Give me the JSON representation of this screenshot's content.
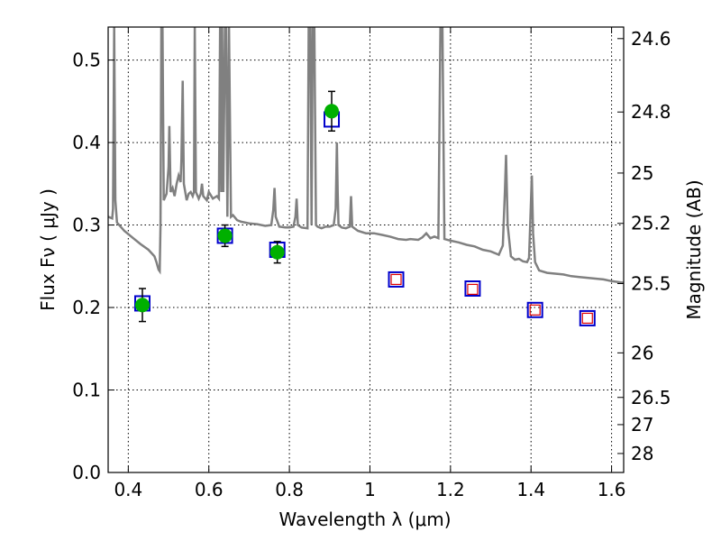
{
  "chart_data": {
    "type": "scatter",
    "xlabel": "Wavelength  λ (μm)",
    "ylabel": "Flux  Fν  ( μJy )",
    "ylabel_right": "Magnitude (AB)",
    "xlim": [
      0.35,
      1.63
    ],
    "ylim": [
      0.0,
      0.54
    ],
    "grid": true,
    "x_ticks": [
      0.4,
      0.6,
      0.8,
      1.0,
      1.2,
      1.4,
      1.6
    ],
    "x_tick_labels": [
      "0.4",
      "0.6",
      "0.8",
      "1",
      "1.2",
      "1.4",
      "1.6"
    ],
    "y_ticks": [
      0.0,
      0.1,
      0.2,
      0.3,
      0.4,
      0.5
    ],
    "y_tick_labels": [
      "0.0",
      "0.1",
      "0.2",
      "0.3",
      "0.4",
      "0.5"
    ],
    "right_ticks": [
      {
        "label": "24.6",
        "flux": 0.526
      },
      {
        "label": "24.8",
        "flux": 0.437
      },
      {
        "label": "25",
        "flux": 0.363
      },
      {
        "label": "25.2",
        "flux": 0.302
      },
      {
        "label": "25.5",
        "flux": 0.229
      },
      {
        "label": "26",
        "flux": 0.145
      },
      {
        "label": "26.5",
        "flux": 0.091
      },
      {
        "label": "27",
        "flux": 0.058
      },
      {
        "label": "28",
        "flux": 0.023
      }
    ],
    "colors": {
      "model": "#808080",
      "observed": "#00b000",
      "model_box": "#0000cc",
      "predicted": "#dd0000",
      "errorbar": "#000000"
    },
    "series": [
      {
        "type": "line",
        "points": [
          [
            0.35,
            0.31
          ],
          [
            0.36,
            0.308
          ],
          [
            0.362,
            0.32
          ],
          [
            0.365,
            0.54
          ],
          [
            0.368,
            0.33
          ],
          [
            0.372,
            0.303
          ],
          [
            0.39,
            0.293
          ],
          [
            0.41,
            0.285
          ],
          [
            0.43,
            0.277
          ],
          [
            0.45,
            0.27
          ],
          [
            0.465,
            0.262
          ],
          [
            0.47,
            0.255
          ],
          [
            0.475,
            0.246
          ],
          [
            0.478,
            0.244
          ],
          [
            0.48,
            0.3
          ],
          [
            0.482,
            0.54
          ],
          [
            0.485,
            0.54
          ],
          [
            0.488,
            0.33
          ],
          [
            0.495,
            0.338
          ],
          [
            0.5,
            0.37
          ],
          [
            0.502,
            0.42
          ],
          [
            0.505,
            0.34
          ],
          [
            0.51,
            0.345
          ],
          [
            0.515,
            0.335
          ],
          [
            0.52,
            0.35
          ],
          [
            0.525,
            0.36
          ],
          [
            0.53,
            0.352
          ],
          [
            0.532,
            0.38
          ],
          [
            0.535,
            0.475
          ],
          [
            0.538,
            0.35
          ],
          [
            0.545,
            0.33
          ],
          [
            0.55,
            0.338
          ],
          [
            0.555,
            0.34
          ],
          [
            0.56,
            0.335
          ],
          [
            0.563,
            0.34
          ],
          [
            0.565,
            0.54
          ],
          [
            0.568,
            0.34
          ],
          [
            0.575,
            0.332
          ],
          [
            0.58,
            0.338
          ],
          [
            0.583,
            0.35
          ],
          [
            0.586,
            0.335
          ],
          [
            0.595,
            0.33
          ],
          [
            0.6,
            0.34
          ],
          [
            0.61,
            0.332
          ],
          [
            0.62,
            0.335
          ],
          [
            0.625,
            0.332
          ],
          [
            0.628,
            0.54
          ],
          [
            0.631,
            0.34
          ],
          [
            0.633,
            0.54
          ],
          [
            0.636,
            0.34
          ],
          [
            0.64,
            0.54
          ],
          [
            0.643,
            0.54
          ],
          [
            0.646,
            0.31
          ],
          [
            0.65,
            0.54
          ],
          [
            0.655,
            0.31
          ],
          [
            0.66,
            0.312
          ],
          [
            0.67,
            0.306
          ],
          [
            0.68,
            0.304
          ],
          [
            0.7,
            0.302
          ],
          [
            0.72,
            0.301
          ],
          [
            0.74,
            0.299
          ],
          [
            0.755,
            0.3
          ],
          [
            0.76,
            0.318
          ],
          [
            0.763,
            0.345
          ],
          [
            0.766,
            0.31
          ],
          [
            0.775,
            0.298
          ],
          [
            0.79,
            0.297
          ],
          [
            0.8,
            0.297
          ],
          [
            0.81,
            0.298
          ],
          [
            0.815,
            0.31
          ],
          [
            0.818,
            0.332
          ],
          [
            0.821,
            0.3
          ],
          [
            0.83,
            0.297
          ],
          [
            0.845,
            0.296
          ],
          [
            0.848,
            0.54
          ],
          [
            0.852,
            0.54
          ],
          [
            0.855,
            0.3
          ],
          [
            0.858,
            0.54
          ],
          [
            0.862,
            0.54
          ],
          [
            0.866,
            0.3
          ],
          [
            0.87,
            0.298
          ],
          [
            0.88,
            0.296
          ],
          [
            0.89,
            0.298
          ],
          [
            0.9,
            0.298
          ],
          [
            0.91,
            0.3
          ],
          [
            0.915,
            0.32
          ],
          [
            0.918,
            0.4
          ],
          [
            0.92,
            0.34
          ],
          [
            0.922,
            0.3
          ],
          [
            0.93,
            0.297
          ],
          [
            0.94,
            0.296
          ],
          [
            0.95,
            0.298
          ],
          [
            0.953,
            0.335
          ],
          [
            0.956,
            0.298
          ],
          [
            0.97,
            0.293
          ],
          [
            0.99,
            0.29
          ],
          [
            1.01,
            0.29
          ],
          [
            1.03,
            0.288
          ],
          [
            1.05,
            0.286
          ],
          [
            1.07,
            0.283
          ],
          [
            1.09,
            0.282
          ],
          [
            1.1,
            0.283
          ],
          [
            1.12,
            0.282
          ],
          [
            1.13,
            0.285
          ],
          [
            1.14,
            0.29
          ],
          [
            1.15,
            0.284
          ],
          [
            1.16,
            0.286
          ],
          [
            1.17,
            0.284
          ],
          [
            1.175,
            0.54
          ],
          [
            1.18,
            0.54
          ],
          [
            1.185,
            0.283
          ],
          [
            1.2,
            0.281
          ],
          [
            1.22,
            0.279
          ],
          [
            1.24,
            0.276
          ],
          [
            1.26,
            0.274
          ],
          [
            1.28,
            0.27
          ],
          [
            1.3,
            0.268
          ],
          [
            1.32,
            0.264
          ],
          [
            1.33,
            0.275
          ],
          [
            1.335,
            0.34
          ],
          [
            1.338,
            0.385
          ],
          [
            1.342,
            0.3
          ],
          [
            1.35,
            0.262
          ],
          [
            1.36,
            0.258
          ],
          [
            1.37,
            0.259
          ],
          [
            1.38,
            0.256
          ],
          [
            1.39,
            0.255
          ],
          [
            1.395,
            0.26
          ],
          [
            1.4,
            0.33
          ],
          [
            1.402,
            0.36
          ],
          [
            1.405,
            0.29
          ],
          [
            1.41,
            0.255
          ],
          [
            1.42,
            0.245
          ],
          [
            1.44,
            0.242
          ],
          [
            1.46,
            0.241
          ],
          [
            1.48,
            0.24
          ],
          [
            1.5,
            0.238
          ],
          [
            1.52,
            0.237
          ],
          [
            1.54,
            0.236
          ],
          [
            1.56,
            0.235
          ],
          [
            1.58,
            0.234
          ],
          [
            1.6,
            0.232
          ],
          [
            1.63,
            0.23
          ]
        ]
      },
      {
        "type": "scatter",
        "marker": "square",
        "points": [
          [
            0.435,
            0.205
          ],
          [
            0.64,
            0.287
          ],
          [
            0.77,
            0.27
          ],
          [
            0.905,
            0.428
          ],
          [
            1.065,
            0.234
          ],
          [
            1.255,
            0.223
          ],
          [
            1.41,
            0.197
          ],
          [
            1.54,
            0.187
          ]
        ]
      },
      {
        "type": "scatter",
        "marker": "circle",
        "points": [
          [
            0.435,
            0.203
          ],
          [
            0.64,
            0.287
          ],
          [
            0.77,
            0.267
          ],
          [
            0.905,
            0.438
          ]
        ],
        "errors": [
          0.02,
          0.013,
          0.013,
          0.024
        ]
      },
      {
        "type": "scatter",
        "marker": "square-small",
        "points": [
          [
            1.065,
            0.234
          ],
          [
            1.255,
            0.222
          ],
          [
            1.41,
            0.197
          ],
          [
            1.54,
            0.187
          ]
        ]
      }
    ]
  }
}
